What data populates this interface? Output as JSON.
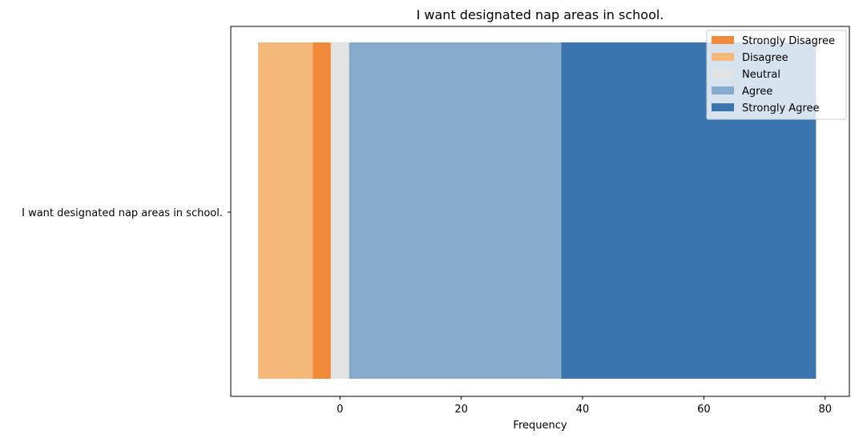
{
  "chart_data": {
    "type": "bar",
    "orientation": "horizontal",
    "stacked": "diverging",
    "title": "I want designated nap areas in school.",
    "xlabel": "Frequency",
    "ylabel": "",
    "categories": [
      "I want designated nap areas in school."
    ],
    "xlim": [
      -18,
      84
    ],
    "xticks": [
      0,
      20,
      40,
      60,
      80
    ],
    "series": [
      {
        "name": "Strongly Disagree",
        "color": "#f08a3a",
        "start": -4.5,
        "end": -1.5
      },
      {
        "name": "Disagree",
        "color": "#f3b87a",
        "start": -13.5,
        "end": -4.5
      },
      {
        "name": "Neutral",
        "color": "#e3e3e3",
        "start": -1.5,
        "end": 1.5
      },
      {
        "name": "Agree",
        "color": "#86abcf",
        "start": 1.5,
        "end": 36.5
      },
      {
        "name": "Strongly Agree",
        "color": "#3a75b0",
        "start": 36.5,
        "end": 78.5
      }
    ],
    "legend_position": "top-right",
    "grid": false
  }
}
